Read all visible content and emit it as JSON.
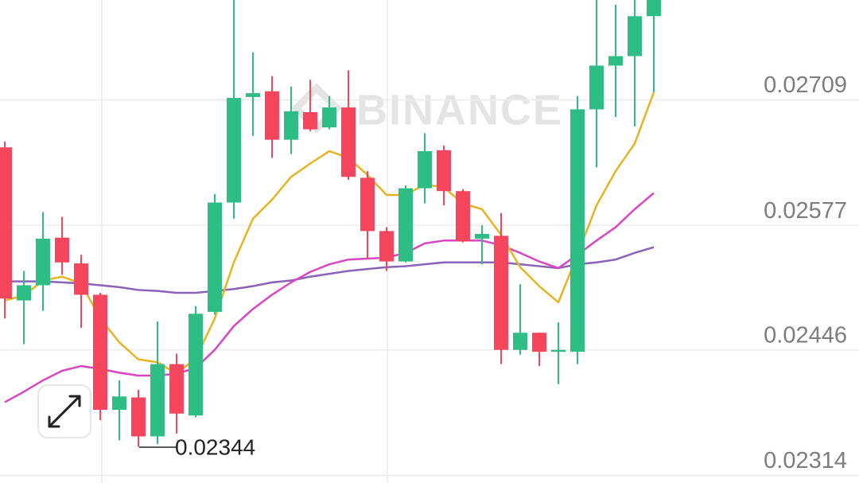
{
  "chart_data": {
    "type": "candlestick",
    "watermark": "BINANCE",
    "annotation": "0.02344",
    "up_color": "#2ebd85",
    "down_color": "#f6465d",
    "ylim": [
      0.02306,
      0.02814
    ],
    "yticks": [
      0.02314,
      0.02446,
      0.02577,
      0.02709
    ],
    "grid": true,
    "open": [
      0.02659,
      0.02498,
      0.02514,
      0.02564,
      0.02537,
      0.02504,
      0.02383,
      0.02396,
      0.02355,
      0.02431,
      0.02377,
      0.02486,
      0.02601,
      0.02712,
      0.02718,
      0.02667,
      0.02696,
      0.0268,
      0.02701,
      0.02627,
      0.02571,
      0.02539,
      0.02616,
      0.02656,
      0.02613,
      0.02563,
      0.02566,
      0.02446,
      0.02464,
      0.02444,
      0.02444,
      0.02699,
      0.02745,
      0.02755,
      0.02797
    ],
    "high": [
      0.02665,
      0.02529,
      0.02591,
      0.02586,
      0.02546,
      0.02506,
      0.02414,
      0.02404,
      0.02476,
      0.02442,
      0.02492,
      0.0261,
      0.02814,
      0.02759,
      0.02734,
      0.02723,
      0.0273,
      0.02713,
      0.0274,
      0.02634,
      0.02575,
      0.02619,
      0.02674,
      0.02661,
      0.02615,
      0.02577,
      0.0259,
      0.02515,
      0.02464,
      0.02475,
      0.02713,
      0.02814,
      0.02809,
      0.02814,
      0.02814
    ],
    "low": [
      0.02479,
      0.02452,
      0.02487,
      0.02525,
      0.02469,
      0.02372,
      0.02351,
      0.02344,
      0.02347,
      0.02358,
      0.02375,
      0.02483,
      0.02584,
      0.02671,
      0.02648,
      0.02652,
      0.02676,
      0.02678,
      0.02625,
      0.02542,
      0.02529,
      0.02538,
      0.026,
      0.02598,
      0.02559,
      0.02536,
      0.02431,
      0.02441,
      0.02429,
      0.0241,
      0.02431,
      0.02638,
      0.02691,
      0.02681,
      0.02717
    ],
    "close": [
      0.025,
      0.02514,
      0.02563,
      0.02538,
      0.02504,
      0.02383,
      0.02397,
      0.02355,
      0.02431,
      0.02379,
      0.02484,
      0.02601,
      0.02711,
      0.02716,
      0.02667,
      0.02697,
      0.02678,
      0.02701,
      0.02628,
      0.02571,
      0.02539,
      0.02616,
      0.02655,
      0.02613,
      0.0256,
      0.02568,
      0.02446,
      0.02464,
      0.02444,
      0.02446,
      0.02699,
      0.02745,
      0.02755,
      0.02797,
      0.02814
    ],
    "series": [
      {
        "color": "#8a62b8",
        "values": [
          0.02518,
          0.02518,
          0.02518,
          0.02517,
          0.02516,
          0.02514,
          0.02512,
          0.02509,
          0.02508,
          0.02506,
          0.02506,
          0.02508,
          0.0251,
          0.02513,
          0.02517,
          0.02519,
          0.02523,
          0.02526,
          0.02529,
          0.02531,
          0.02533,
          0.02534,
          0.02536,
          0.02538,
          0.02538,
          0.02538,
          0.02538,
          0.02536,
          0.02534,
          0.02532,
          0.02536,
          0.02538,
          0.02541,
          0.02548,
          0.02554
        ]
      },
      {
        "color": "#d946c2",
        "values": [
          0.02391,
          0.02402,
          0.02414,
          0.02424,
          0.02429,
          0.02426,
          0.02422,
          0.02419,
          0.02419,
          0.02421,
          0.02427,
          0.02446,
          0.02471,
          0.02489,
          0.02504,
          0.02517,
          0.02528,
          0.02536,
          0.02541,
          0.02542,
          0.02543,
          0.02548,
          0.02558,
          0.02561,
          0.02561,
          0.02561,
          0.02556,
          0.02548,
          0.02539,
          0.02532,
          0.02546,
          0.02561,
          0.02575,
          0.02594,
          0.02611
        ]
      },
      {
        "color": "#e6b422",
        "values": [
          0.02498,
          0.02503,
          0.02519,
          0.02523,
          0.02516,
          0.02479,
          0.02454,
          0.02436,
          0.02433,
          0.02421,
          0.02437,
          0.02479,
          0.02538,
          0.02584,
          0.02604,
          0.02628,
          0.02642,
          0.02655,
          0.02648,
          0.0263,
          0.02609,
          0.02609,
          0.0262,
          0.02617,
          0.026,
          0.02594,
          0.02567,
          0.02533,
          0.02513,
          0.02496,
          0.02546,
          0.02598,
          0.02634,
          0.02663,
          0.02717
        ]
      }
    ]
  }
}
